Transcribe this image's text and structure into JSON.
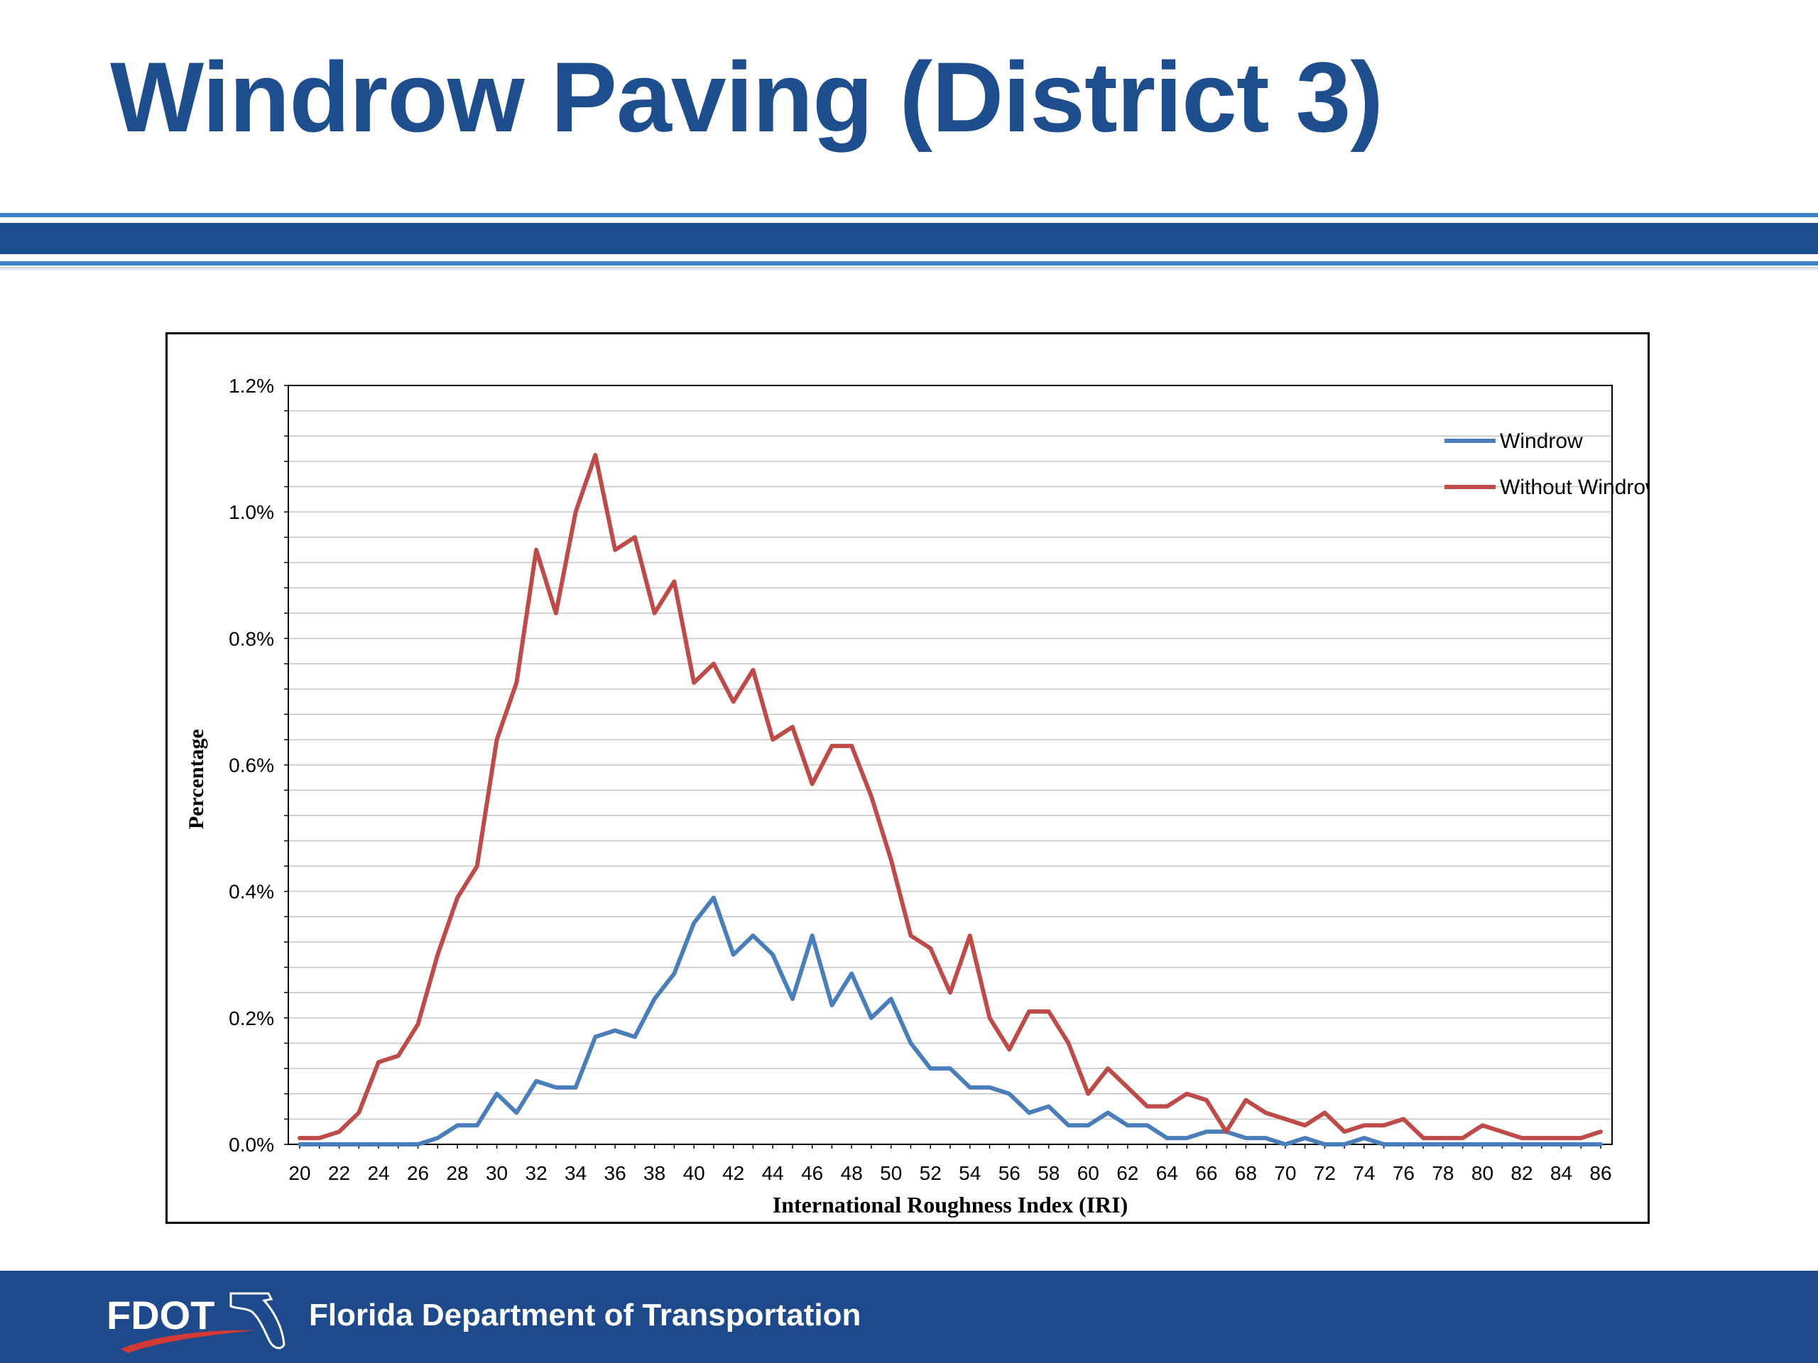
{
  "slide": {
    "title": "Windrow Paving (District 3)",
    "org_name": "Florida Department of Transportation",
    "logo_text": "FDOT"
  },
  "colors": {
    "title": "#1f4e8f",
    "band": "#1e4e8c",
    "footer": "#1e4a8c",
    "windrow": "#4a7ebb",
    "without_windrow": "#be4b48"
  },
  "chart_data": {
    "type": "line",
    "title": "",
    "xlabel": "International Roughness Index (IRI)",
    "ylabel": "Percentage",
    "x": [
      20,
      21,
      22,
      23,
      24,
      25,
      26,
      27,
      28,
      29,
      30,
      31,
      32,
      33,
      34,
      35,
      36,
      37,
      38,
      39,
      40,
      41,
      42,
      43,
      44,
      45,
      46,
      47,
      48,
      49,
      50,
      51,
      52,
      53,
      54,
      55,
      56,
      57,
      58,
      59,
      60,
      61,
      62,
      63,
      64,
      65,
      66,
      67,
      68,
      69,
      70,
      71,
      72,
      73,
      74,
      75,
      76,
      77,
      78,
      79,
      80,
      81,
      82,
      83,
      84,
      85,
      86
    ],
    "x_tick_labels": [
      "20",
      "22",
      "24",
      "26",
      "28",
      "30",
      "32",
      "34",
      "36",
      "38",
      "40",
      "42",
      "44",
      "46",
      "48",
      "50",
      "52",
      "54",
      "56",
      "58",
      "60",
      "62",
      "64",
      "66",
      "68",
      "70",
      "72",
      "74",
      "76",
      "78",
      "80",
      "82",
      "84",
      "86"
    ],
    "ylim": [
      0,
      1.2
    ],
    "y_tick_labels": [
      "0.0%",
      "0.2%",
      "0.4%",
      "0.6%",
      "0.8%",
      "1.0%",
      "1.2%"
    ],
    "grid": true,
    "legend_position": "top-right",
    "series": [
      {
        "name": "Windrow",
        "color": "#4a7ebb",
        "values": [
          0,
          0,
          0,
          0,
          0,
          0,
          0,
          0.01,
          0.03,
          0.03,
          0.08,
          0.05,
          0.1,
          0.09,
          0.09,
          0.17,
          0.18,
          0.17,
          0.23,
          0.27,
          0.35,
          0.39,
          0.3,
          0.33,
          0.3,
          0.23,
          0.33,
          0.22,
          0.27,
          0.2,
          0.23,
          0.16,
          0.12,
          0.12,
          0.09,
          0.09,
          0.08,
          0.05,
          0.06,
          0.03,
          0.03,
          0.05,
          0.03,
          0.03,
          0.01,
          0.01,
          0.02,
          0.02,
          0.01,
          0.01,
          0,
          0.01,
          0,
          0,
          0.01,
          0,
          0,
          0,
          0,
          0,
          0,
          0,
          0,
          0,
          0,
          0,
          0
        ]
      },
      {
        "name": "Without Windrow",
        "color": "#be4b48",
        "values": [
          0.01,
          0.01,
          0.02,
          0.05,
          0.13,
          0.14,
          0.19,
          0.3,
          0.39,
          0.44,
          0.64,
          0.73,
          0.94,
          0.84,
          1.0,
          1.09,
          0.94,
          0.96,
          0.84,
          0.89,
          0.73,
          0.76,
          0.7,
          0.75,
          0.64,
          0.66,
          0.57,
          0.63,
          0.63,
          0.55,
          0.45,
          0.33,
          0.31,
          0.24,
          0.33,
          0.2,
          0.15,
          0.21,
          0.21,
          0.16,
          0.08,
          0.12,
          0.09,
          0.06,
          0.06,
          0.08,
          0.07,
          0.02,
          0.07,
          0.05,
          0.04,
          0.03,
          0.05,
          0.02,
          0.03,
          0.03,
          0.04,
          0.01,
          0.01,
          0.01,
          0.03,
          0.02,
          0.01,
          0.01,
          0.01,
          0.01,
          0.02
        ]
      }
    ]
  }
}
